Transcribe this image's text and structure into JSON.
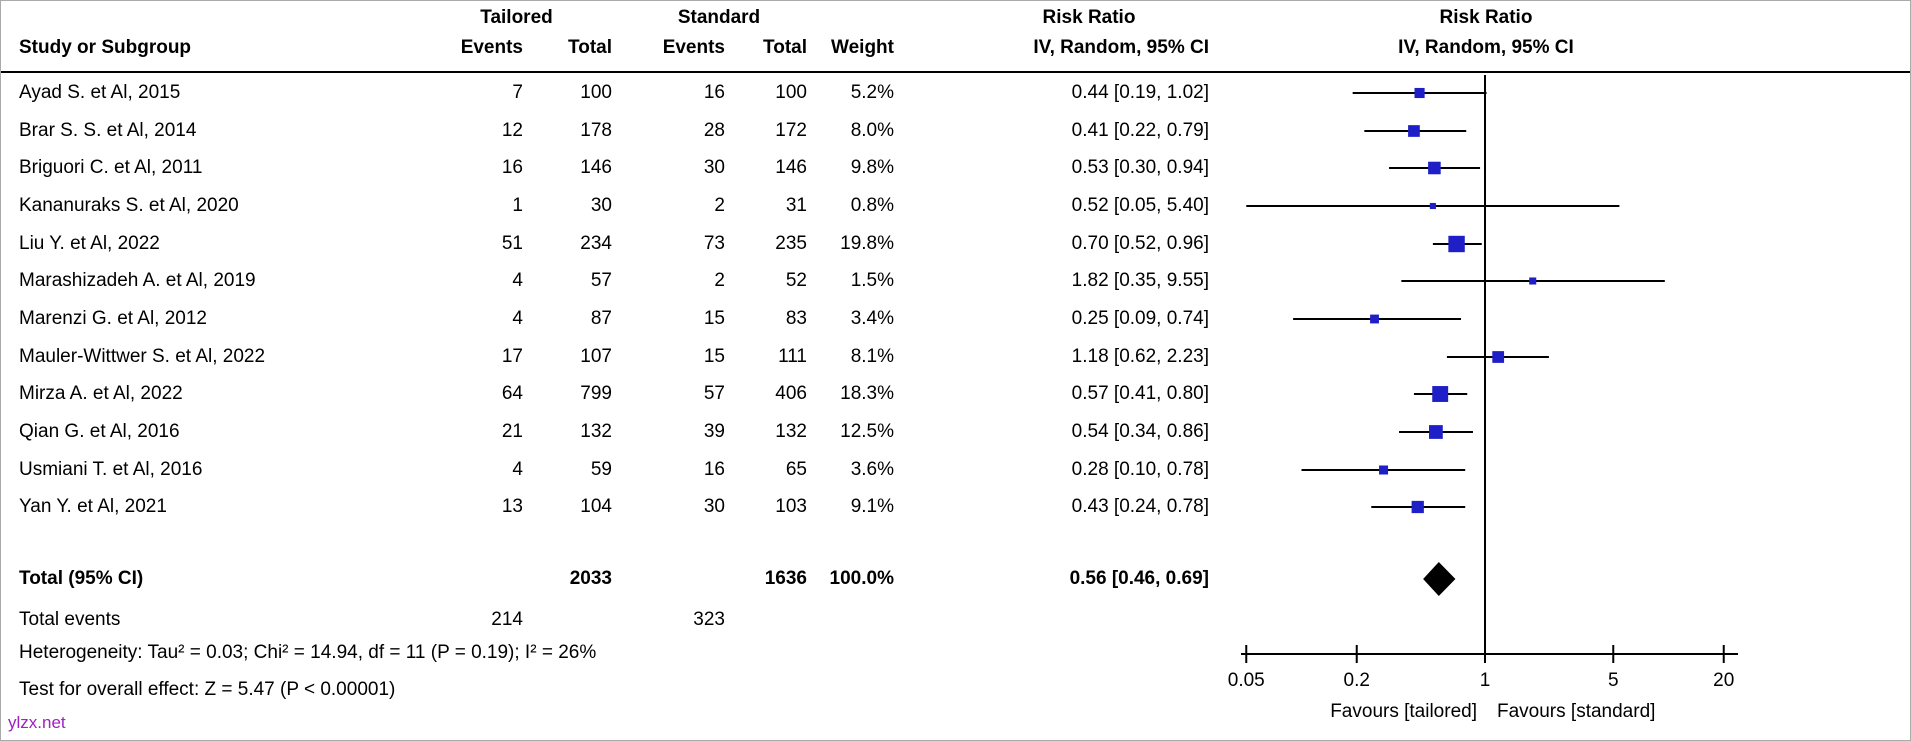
{
  "header": {
    "study": "Study or Subgroup",
    "group1": "Tailored",
    "group2": "Standard",
    "events": "Events",
    "total": "Total",
    "weight": "Weight",
    "effect_title": "Risk Ratio",
    "effect_method": "IV, Random, 95% CI"
  },
  "plot_header": {
    "effect_title": "Risk Ratio",
    "effect_method": "IV, Random, 95% CI"
  },
  "studies": [
    {
      "name": "Ayad S. et Al, 2015",
      "t_events": "7",
      "t_total": "100",
      "s_events": "16",
      "s_total": "100",
      "weight": "5.2%",
      "rr_text": "0.44 [0.19, 1.02]"
    },
    {
      "name": "Brar S. S. et Al, 2014",
      "t_events": "12",
      "t_total": "178",
      "s_events": "28",
      "s_total": "172",
      "weight": "8.0%",
      "rr_text": "0.41 [0.22, 0.79]"
    },
    {
      "name": "Briguori C. et Al, 2011",
      "t_events": "16",
      "t_total": "146",
      "s_events": "30",
      "s_total": "146",
      "weight": "9.8%",
      "rr_text": "0.53 [0.30, 0.94]"
    },
    {
      "name": "Kananuraks S. et Al, 2020",
      "t_events": "1",
      "t_total": "30",
      "s_events": "2",
      "s_total": "31",
      "weight": "0.8%",
      "rr_text": "0.52 [0.05, 5.40]"
    },
    {
      "name": "Liu Y. et Al, 2022",
      "t_events": "51",
      "t_total": "234",
      "s_events": "73",
      "s_total": "235",
      "weight": "19.8%",
      "rr_text": "0.70 [0.52, 0.96]"
    },
    {
      "name": "Marashizadeh A. et Al, 2019",
      "t_events": "4",
      "t_total": "57",
      "s_events": "2",
      "s_total": "52",
      "weight": "1.5%",
      "rr_text": "1.82 [0.35, 9.55]"
    },
    {
      "name": "Marenzi G. et Al, 2012",
      "t_events": "4",
      "t_total": "87",
      "s_events": "15",
      "s_total": "83",
      "weight": "3.4%",
      "rr_text": "0.25 [0.09, 0.74]"
    },
    {
      "name": "Mauler-Wittwer S. et Al, 2022",
      "t_events": "17",
      "t_total": "107",
      "s_events": "15",
      "s_total": "111",
      "weight": "8.1%",
      "rr_text": "1.18 [0.62, 2.23]"
    },
    {
      "name": "Mirza A. et Al, 2022",
      "t_events": "64",
      "t_total": "799",
      "s_events": "57",
      "s_total": "406",
      "weight": "18.3%",
      "rr_text": "0.57 [0.41, 0.80]"
    },
    {
      "name": "Qian G. et Al, 2016",
      "t_events": "21",
      "t_total": "132",
      "s_events": "39",
      "s_total": "132",
      "weight": "12.5%",
      "rr_text": "0.54 [0.34, 0.86]"
    },
    {
      "name": "Usmiani T. et Al, 2016",
      "t_events": "4",
      "t_total": "59",
      "s_events": "16",
      "s_total": "65",
      "weight": "3.6%",
      "rr_text": "0.28 [0.10, 0.78]"
    },
    {
      "name": "Yan Y. et Al, 2021",
      "t_events": "13",
      "t_total": "104",
      "s_events": "30",
      "s_total": "103",
      "weight": "9.1%",
      "rr_text": "0.43 [0.24, 0.78]"
    }
  ],
  "total_row": {
    "label": "Total (95% CI)",
    "t_total": "2033",
    "s_total": "1636",
    "weight": "100.0%",
    "rr_text": "0.56 [0.46, 0.69]"
  },
  "total_events_row": {
    "label": "Total events",
    "t_events": "214",
    "s_events": "323"
  },
  "footer": {
    "heterogeneity": "Heterogeneity: Tau² = 0.03; Chi² = 14.94, df = 11 (P = 0.19); I² = 26%",
    "overall_effect": "Test for overall effect: Z = 5.47 (P < 0.00001)"
  },
  "watermark": "ylzx.net",
  "colors": {
    "marker_blue": "#1f1fc8",
    "diamond_black": "#000000",
    "line_black": "#000000",
    "watermark_purple": "#a020c0"
  },
  "chart_data": {
    "type": "scatter",
    "subtype": "forest-plot",
    "title": "Risk Ratio",
    "method": "IV, Random, 95% CI",
    "x_scale": "log",
    "x_ticks": [
      0.05,
      0.2,
      1,
      5,
      20
    ],
    "x_tick_labels": [
      "0.05",
      "0.2",
      "1",
      "5",
      "20"
    ],
    "xlim": [
      0.05,
      20
    ],
    "null_line": 1,
    "xlabel_left": "Favours [tailored]",
    "xlabel_right": "Favours [standard]",
    "series": [
      {
        "name": "Ayad S. et Al, 2015",
        "rr": 0.44,
        "ci_low": 0.19,
        "ci_high": 1.02,
        "weight": 5.2
      },
      {
        "name": "Brar S. S. et Al, 2014",
        "rr": 0.41,
        "ci_low": 0.22,
        "ci_high": 0.79,
        "weight": 8.0
      },
      {
        "name": "Briguori C. et Al, 2011",
        "rr": 0.53,
        "ci_low": 0.3,
        "ci_high": 0.94,
        "weight": 9.8
      },
      {
        "name": "Kananuraks S. et Al, 2020",
        "rr": 0.52,
        "ci_low": 0.05,
        "ci_high": 5.4,
        "weight": 0.8
      },
      {
        "name": "Liu Y. et Al, 2022",
        "rr": 0.7,
        "ci_low": 0.52,
        "ci_high": 0.96,
        "weight": 19.8
      },
      {
        "name": "Marashizadeh A. et Al, 2019",
        "rr": 1.82,
        "ci_low": 0.35,
        "ci_high": 9.55,
        "weight": 1.5
      },
      {
        "name": "Marenzi G. et Al, 2012",
        "rr": 0.25,
        "ci_low": 0.09,
        "ci_high": 0.74,
        "weight": 3.4
      },
      {
        "name": "Mauler-Wittwer S. et Al, 2022",
        "rr": 1.18,
        "ci_low": 0.62,
        "ci_high": 2.23,
        "weight": 8.1
      },
      {
        "name": "Mirza A. et Al, 2022",
        "rr": 0.57,
        "ci_low": 0.41,
        "ci_high": 0.8,
        "weight": 18.3
      },
      {
        "name": "Qian G. et Al, 2016",
        "rr": 0.54,
        "ci_low": 0.34,
        "ci_high": 0.86,
        "weight": 12.5
      },
      {
        "name": "Usmiani T. et Al, 2016",
        "rr": 0.28,
        "ci_low": 0.1,
        "ci_high": 0.78,
        "weight": 3.6
      },
      {
        "name": "Yan Y. et Al, 2021",
        "rr": 0.43,
        "ci_low": 0.24,
        "ci_high": 0.78,
        "weight": 9.1
      }
    ],
    "summary": {
      "name": "Total (95% CI)",
      "rr": 0.56,
      "ci_low": 0.46,
      "ci_high": 0.69,
      "weight": 100.0
    }
  }
}
